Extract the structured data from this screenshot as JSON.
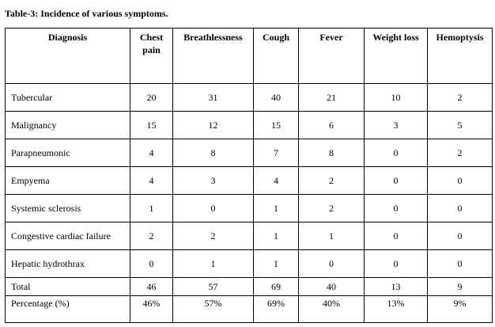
{
  "caption": "Table-3: Incidence of various symptoms.",
  "headers": {
    "diagnosis": "Diagnosis",
    "chest_pain": "Chest pain",
    "breathlessness": "Breathlessness",
    "cough": "Cough",
    "fever": "Fever",
    "weight_loss": "Weight loss",
    "hemoptysis": "Hemoptysis"
  },
  "rows": [
    {
      "diagnosis": "Tubercular",
      "values": [
        "20",
        "31",
        "40",
        "21",
        "10",
        "2"
      ]
    },
    {
      "diagnosis": "Malignancy",
      "values": [
        "15",
        "12",
        "15",
        "6",
        "3",
        "5"
      ]
    },
    {
      "diagnosis": "Parapneumonic",
      "values": [
        "4",
        "8",
        "7",
        "8",
        "0",
        "2"
      ]
    },
    {
      "diagnosis": "Empyema",
      "values": [
        "4",
        "3",
        "4",
        "2",
        "0",
        "0"
      ]
    },
    {
      "diagnosis": "Systemic sclerosis",
      "values": [
        "1",
        "0",
        "1",
        "2",
        "0",
        "0"
      ]
    },
    {
      "diagnosis": "Congestive cardiac failure",
      "values": [
        "2",
        "2",
        "1",
        "1",
        "0",
        "0"
      ]
    },
    {
      "diagnosis": "Hepatic hydrothrax",
      "values": [
        "0",
        "1",
        "1",
        "0",
        "0",
        "0"
      ]
    },
    {
      "diagnosis": "Total",
      "values": [
        "46",
        "57",
        "69",
        "40",
        "13",
        "9"
      ]
    },
    {
      "diagnosis": "Percentage (%)",
      "values": [
        "46%",
        "57%",
        "69%",
        "40%",
        "13%",
        "9%"
      ]
    }
  ]
}
